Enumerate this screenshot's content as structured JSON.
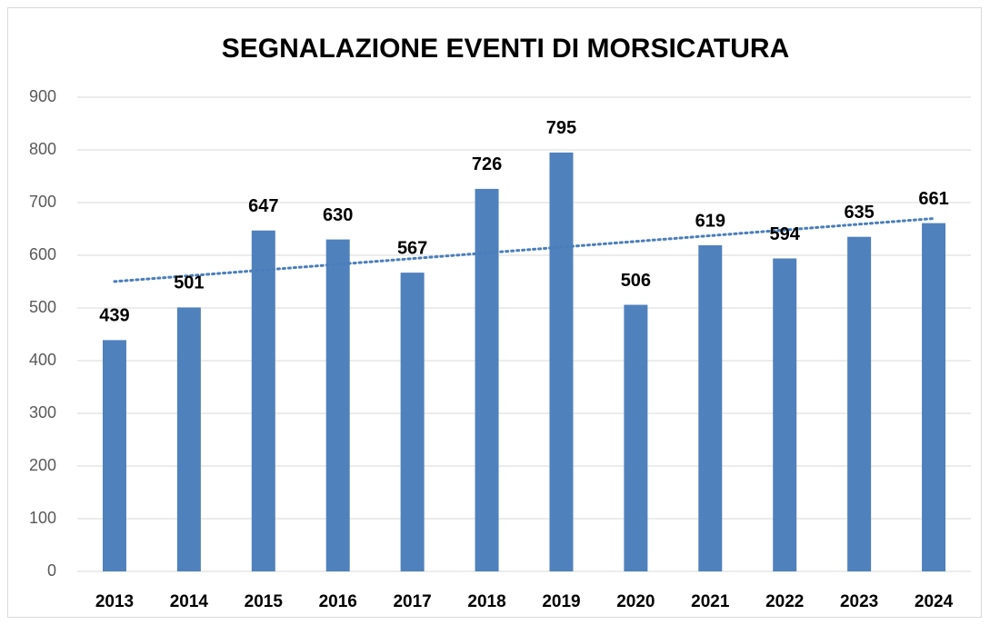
{
  "chart_data": {
    "type": "bar",
    "title": "SEGNALAZIONE EVENTI DI MORSICATURA",
    "categories": [
      "2013",
      "2014",
      "2015",
      "2016",
      "2017",
      "2018",
      "2019",
      "2020",
      "2021",
      "2022",
      "2023",
      "2024"
    ],
    "values": [
      439,
      501,
      647,
      630,
      567,
      726,
      795,
      506,
      619,
      594,
      635,
      661
    ],
    "color": "#4f81bd",
    "trendline": "linear",
    "ylim": [
      0,
      900
    ],
    "yticks": [
      0,
      100,
      200,
      300,
      400,
      500,
      600,
      700,
      800,
      900
    ],
    "grid": true
  }
}
